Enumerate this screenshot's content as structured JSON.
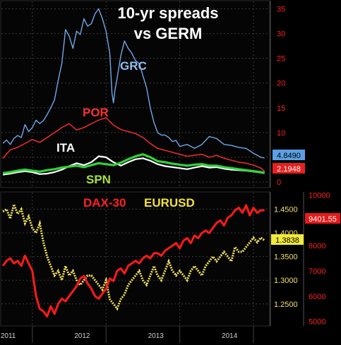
{
  "chart_data": [
    {
      "type": "line",
      "title": "10-yr spreads",
      "subtitle": "vs GERM",
      "y_right_ticks": [
        0,
        5,
        10,
        15,
        20,
        25,
        30,
        35
      ],
      "ylim": [
        -1,
        36.5
      ],
      "x_range": [
        2010.58,
        2014.22
      ],
      "grid": true,
      "colors": {
        "axis": "#ff2020",
        "background": "#000000"
      },
      "series": [
        {
          "name": "GRC",
          "color": "#6fa8e8",
          "last": "4.8490",
          "label_color": "#8fc0ee",
          "x": [
            2010.6,
            2010.65,
            2010.7,
            2010.75,
            2010.8,
            2010.85,
            2010.9,
            2010.95,
            2011.0,
            2011.05,
            2011.1,
            2011.15,
            2011.2,
            2011.25,
            2011.3,
            2011.35,
            2011.4,
            2011.45,
            2011.5,
            2011.55,
            2011.6,
            2011.65,
            2011.7,
            2011.75,
            2011.8,
            2011.85,
            2011.9,
            2011.95,
            2012.0,
            2012.05,
            2012.08,
            2012.1,
            2012.12,
            2012.15,
            2012.2,
            2012.25,
            2012.3,
            2012.35,
            2012.4,
            2012.45,
            2012.5,
            2012.55,
            2012.6,
            2012.65,
            2012.7,
            2012.75,
            2012.8,
            2012.85,
            2012.9,
            2012.95,
            2013.0,
            2013.1,
            2013.2,
            2013.3,
            2013.4,
            2013.5,
            2013.6,
            2013.7,
            2013.8,
            2013.9,
            2014.0,
            2014.1,
            2014.15
          ],
          "y": [
            7.8,
            8.5,
            7.6,
            8.8,
            9.4,
            9.0,
            11.6,
            10.2,
            11.0,
            12.5,
            11.8,
            12.4,
            13.6,
            15.0,
            16.6,
            20.5,
            24.0,
            30.8,
            29.5,
            27.0,
            30.5,
            29.8,
            33.0,
            31.5,
            32.0,
            34.0,
            35.0,
            33.0,
            30.5,
            26.0,
            18.0,
            16.0,
            18.5,
            21.0,
            25.5,
            28.5,
            27.0,
            26.0,
            24.5,
            24.0,
            21.5,
            19.0,
            15.0,
            12.0,
            10.0,
            9.5,
            9.5,
            9.0,
            8.2,
            8.4,
            7.2,
            7.6,
            6.8,
            7.6,
            9.2,
            8.8,
            7.6,
            7.4,
            7.0,
            6.8,
            5.8,
            5.0,
            4.849
          ]
        },
        {
          "name": "POR",
          "color": "#e52b2b",
          "last": "2.1948",
          "label_color": "#ff3030",
          "x": [
            2010.6,
            2010.7,
            2010.8,
            2010.9,
            2011.0,
            2011.1,
            2011.2,
            2011.3,
            2011.4,
            2011.5,
            2011.6,
            2011.7,
            2011.8,
            2011.9,
            2012.0,
            2012.1,
            2012.2,
            2012.3,
            2012.4,
            2012.5,
            2012.6,
            2012.7,
            2012.8,
            2012.9,
            2013.0,
            2013.1,
            2013.2,
            2013.3,
            2013.4,
            2013.5,
            2013.6,
            2013.7,
            2013.8,
            2013.9,
            2014.0,
            2014.1,
            2014.15
          ],
          "y": [
            4.8,
            6.5,
            7.0,
            7.8,
            8.6,
            8.0,
            9.0,
            10.0,
            11.0,
            11.8,
            10.5,
            11.0,
            11.8,
            12.5,
            13.0,
            11.5,
            10.6,
            10.2,
            9.8,
            9.0,
            7.8,
            6.8,
            6.4,
            6.0,
            5.6,
            5.2,
            5.4,
            5.6,
            5.0,
            5.4,
            4.8,
            4.4,
            4.0,
            3.8,
            3.4,
            2.8,
            2.19
          ]
        },
        {
          "name": "ITA",
          "color": "#ffffff",
          "label_color": "#ffffff",
          "x": [
            2010.6,
            2010.7,
            2010.8,
            2010.9,
            2011.0,
            2011.1,
            2011.2,
            2011.3,
            2011.4,
            2011.5,
            2011.6,
            2011.7,
            2011.8,
            2011.9,
            2012.0,
            2012.1,
            2012.2,
            2012.3,
            2012.4,
            2012.5,
            2012.6,
            2012.7,
            2012.8,
            2012.9,
            2013.0,
            2013.1,
            2013.2,
            2013.3,
            2013.4,
            2013.5,
            2013.6,
            2013.7,
            2013.8,
            2013.9,
            2014.0,
            2014.1,
            2014.15
          ],
          "y": [
            1.5,
            1.7,
            2.0,
            2.2,
            2.0,
            1.6,
            1.7,
            2.0,
            2.5,
            3.2,
            3.8,
            3.4,
            4.0,
            5.2,
            5.0,
            4.0,
            3.3,
            4.0,
            4.6,
            4.8,
            4.3,
            3.6,
            3.2,
            3.0,
            2.8,
            2.6,
            2.9,
            3.2,
            2.9,
            3.0,
            2.7,
            2.5,
            2.4,
            2.3,
            2.1,
            1.9,
            1.8
          ]
        },
        {
          "name": "SPN",
          "color": "#2fd43a",
          "label_color": "#a8e03c",
          "x": [
            2010.6,
            2010.7,
            2010.8,
            2010.9,
            2011.0,
            2011.1,
            2011.2,
            2011.3,
            2011.4,
            2011.5,
            2011.6,
            2011.7,
            2011.8,
            2011.9,
            2012.0,
            2012.1,
            2012.2,
            2012.3,
            2012.4,
            2012.5,
            2012.6,
            2012.7,
            2012.8,
            2012.9,
            2013.0,
            2013.1,
            2013.2,
            2013.3,
            2013.4,
            2013.5,
            2013.6,
            2013.7,
            2013.8,
            2013.9,
            2014.0,
            2014.1,
            2014.15
          ],
          "y": [
            1.8,
            2.0,
            2.3,
            2.5,
            2.3,
            2.1,
            2.4,
            2.6,
            2.9,
            3.1,
            3.3,
            3.0,
            3.4,
            3.8,
            3.6,
            3.4,
            3.9,
            4.6,
            5.2,
            5.6,
            5.0,
            4.2,
            4.0,
            3.7,
            3.5,
            3.3,
            3.5,
            3.6,
            3.3,
            3.3,
            3.0,
            2.8,
            2.6,
            2.4,
            2.2,
            2.0,
            1.9
          ]
        }
      ]
    },
    {
      "type": "line",
      "x_ticks": [
        2011,
        2012,
        2013,
        2014
      ],
      "x_range": [
        2010.58,
        2014.22
      ],
      "grid": true,
      "axes": [
        {
          "name": "EURUSD",
          "side": "inner-right",
          "color": "#f0e060",
          "ticks": [
            "1.2500",
            "1.3000",
            "1.3500",
            "1.4000",
            "1.4500"
          ],
          "tick_values": [
            1.25,
            1.3,
            1.35,
            1.4,
            1.45
          ],
          "range": [
            1.205,
            1.485
          ]
        },
        {
          "name": "DAX-30",
          "side": "outer-right",
          "color": "#ff2020",
          "ticks": [
            "5000",
            "6000",
            "7000",
            "8000",
            "9000",
            "10000"
          ],
          "tick_values": [
            5000,
            6000,
            7000,
            8000,
            9000,
            10000
          ],
          "range": [
            4850,
            10100
          ]
        }
      ],
      "series": [
        {
          "name": "DAX-30",
          "axis": "DAX-30",
          "color": "#ff1a1a",
          "last": "9401.55",
          "label_color": "#ff2020",
          "x": [
            2010.6,
            2010.65,
            2010.7,
            2010.75,
            2010.8,
            2010.85,
            2010.9,
            2010.95,
            2011.0,
            2011.05,
            2011.1,
            2011.15,
            2011.2,
            2011.25,
            2011.3,
            2011.35,
            2011.4,
            2011.45,
            2011.5,
            2011.55,
            2011.6,
            2011.65,
            2011.7,
            2011.75,
            2011.8,
            2011.85,
            2011.9,
            2011.95,
            2012.0,
            2012.05,
            2012.1,
            2012.15,
            2012.2,
            2012.25,
            2012.3,
            2012.35,
            2012.4,
            2012.45,
            2012.5,
            2012.55,
            2012.6,
            2012.65,
            2012.7,
            2012.75,
            2012.8,
            2012.85,
            2012.9,
            2012.95,
            2013.0,
            2013.05,
            2013.1,
            2013.15,
            2013.2,
            2013.25,
            2013.3,
            2013.35,
            2013.4,
            2013.45,
            2013.5,
            2013.55,
            2013.6,
            2013.65,
            2013.7,
            2013.75,
            2013.8,
            2013.85,
            2013.9,
            2013.95,
            2014.0,
            2014.05,
            2014.1,
            2014.15
          ],
          "y": [
            7200,
            7400,
            7500,
            7300,
            7400,
            7200,
            7600,
            7300,
            7000,
            6000,
            5500,
            5400,
            5200,
            5600,
            5300,
            5700,
            5900,
            5800,
            6000,
            6200,
            6400,
            6700,
            6800,
            6500,
            6300,
            6000,
            5900,
            6100,
            6300,
            6700,
            6600,
            7000,
            7100,
            6900,
            7200,
            7300,
            7400,
            7300,
            7500,
            7600,
            7500,
            7700,
            7700,
            7600,
            7800,
            7900,
            8000,
            8100,
            7900,
            8200,
            8300,
            8100,
            8400,
            8300,
            8500,
            8600,
            8500,
            8700,
            8900,
            9000,
            8800,
            9100,
            9200,
            9400,
            9500,
            9300,
            9600,
            9200,
            9500,
            9300,
            9400,
            9401
          ]
        },
        {
          "name": "EURUSD",
          "axis": "EURUSD",
          "color": "#f0e060",
          "last": "1.3838",
          "label_color": "#f2e23a",
          "x": [
            2010.6,
            2010.65,
            2010.7,
            2010.75,
            2010.8,
            2010.85,
            2010.9,
            2010.95,
            2011.0,
            2011.05,
            2011.1,
            2011.15,
            2011.2,
            2011.25,
            2011.3,
            2011.35,
            2011.4,
            2011.45,
            2011.5,
            2011.55,
            2011.6,
            2011.65,
            2011.7,
            2011.75,
            2011.8,
            2011.85,
            2011.9,
            2011.95,
            2012.0,
            2012.05,
            2012.1,
            2012.15,
            2012.2,
            2012.25,
            2012.3,
            2012.35,
            2012.4,
            2012.45,
            2012.5,
            2012.55,
            2012.6,
            2012.65,
            2012.7,
            2012.75,
            2012.8,
            2012.85,
            2012.9,
            2012.95,
            2013.0,
            2013.05,
            2013.1,
            2013.15,
            2013.2,
            2013.25,
            2013.3,
            2013.35,
            2013.4,
            2013.45,
            2013.5,
            2013.55,
            2013.6,
            2013.65,
            2013.7,
            2013.75,
            2013.8,
            2013.85,
            2013.9,
            2013.95,
            2014.0,
            2014.05,
            2014.1,
            2014.15
          ],
          "y": [
            1.445,
            1.45,
            1.43,
            1.46,
            1.44,
            1.45,
            1.42,
            1.435,
            1.41,
            1.4,
            1.42,
            1.38,
            1.35,
            1.33,
            1.31,
            1.32,
            1.3,
            1.33,
            1.31,
            1.32,
            1.3,
            1.29,
            1.3,
            1.31,
            1.31,
            1.3,
            1.29,
            1.28,
            1.3,
            1.26,
            1.25,
            1.24,
            1.26,
            1.27,
            1.29,
            1.3,
            1.31,
            1.32,
            1.3,
            1.29,
            1.31,
            1.33,
            1.31,
            1.3,
            1.32,
            1.34,
            1.32,
            1.31,
            1.32,
            1.31,
            1.3,
            1.32,
            1.33,
            1.32,
            1.31,
            1.33,
            1.34,
            1.35,
            1.34,
            1.35,
            1.36,
            1.35,
            1.34,
            1.37,
            1.36,
            1.36,
            1.37,
            1.38,
            1.39,
            1.38,
            1.39,
            1.384
          ]
        }
      ]
    }
  ]
}
